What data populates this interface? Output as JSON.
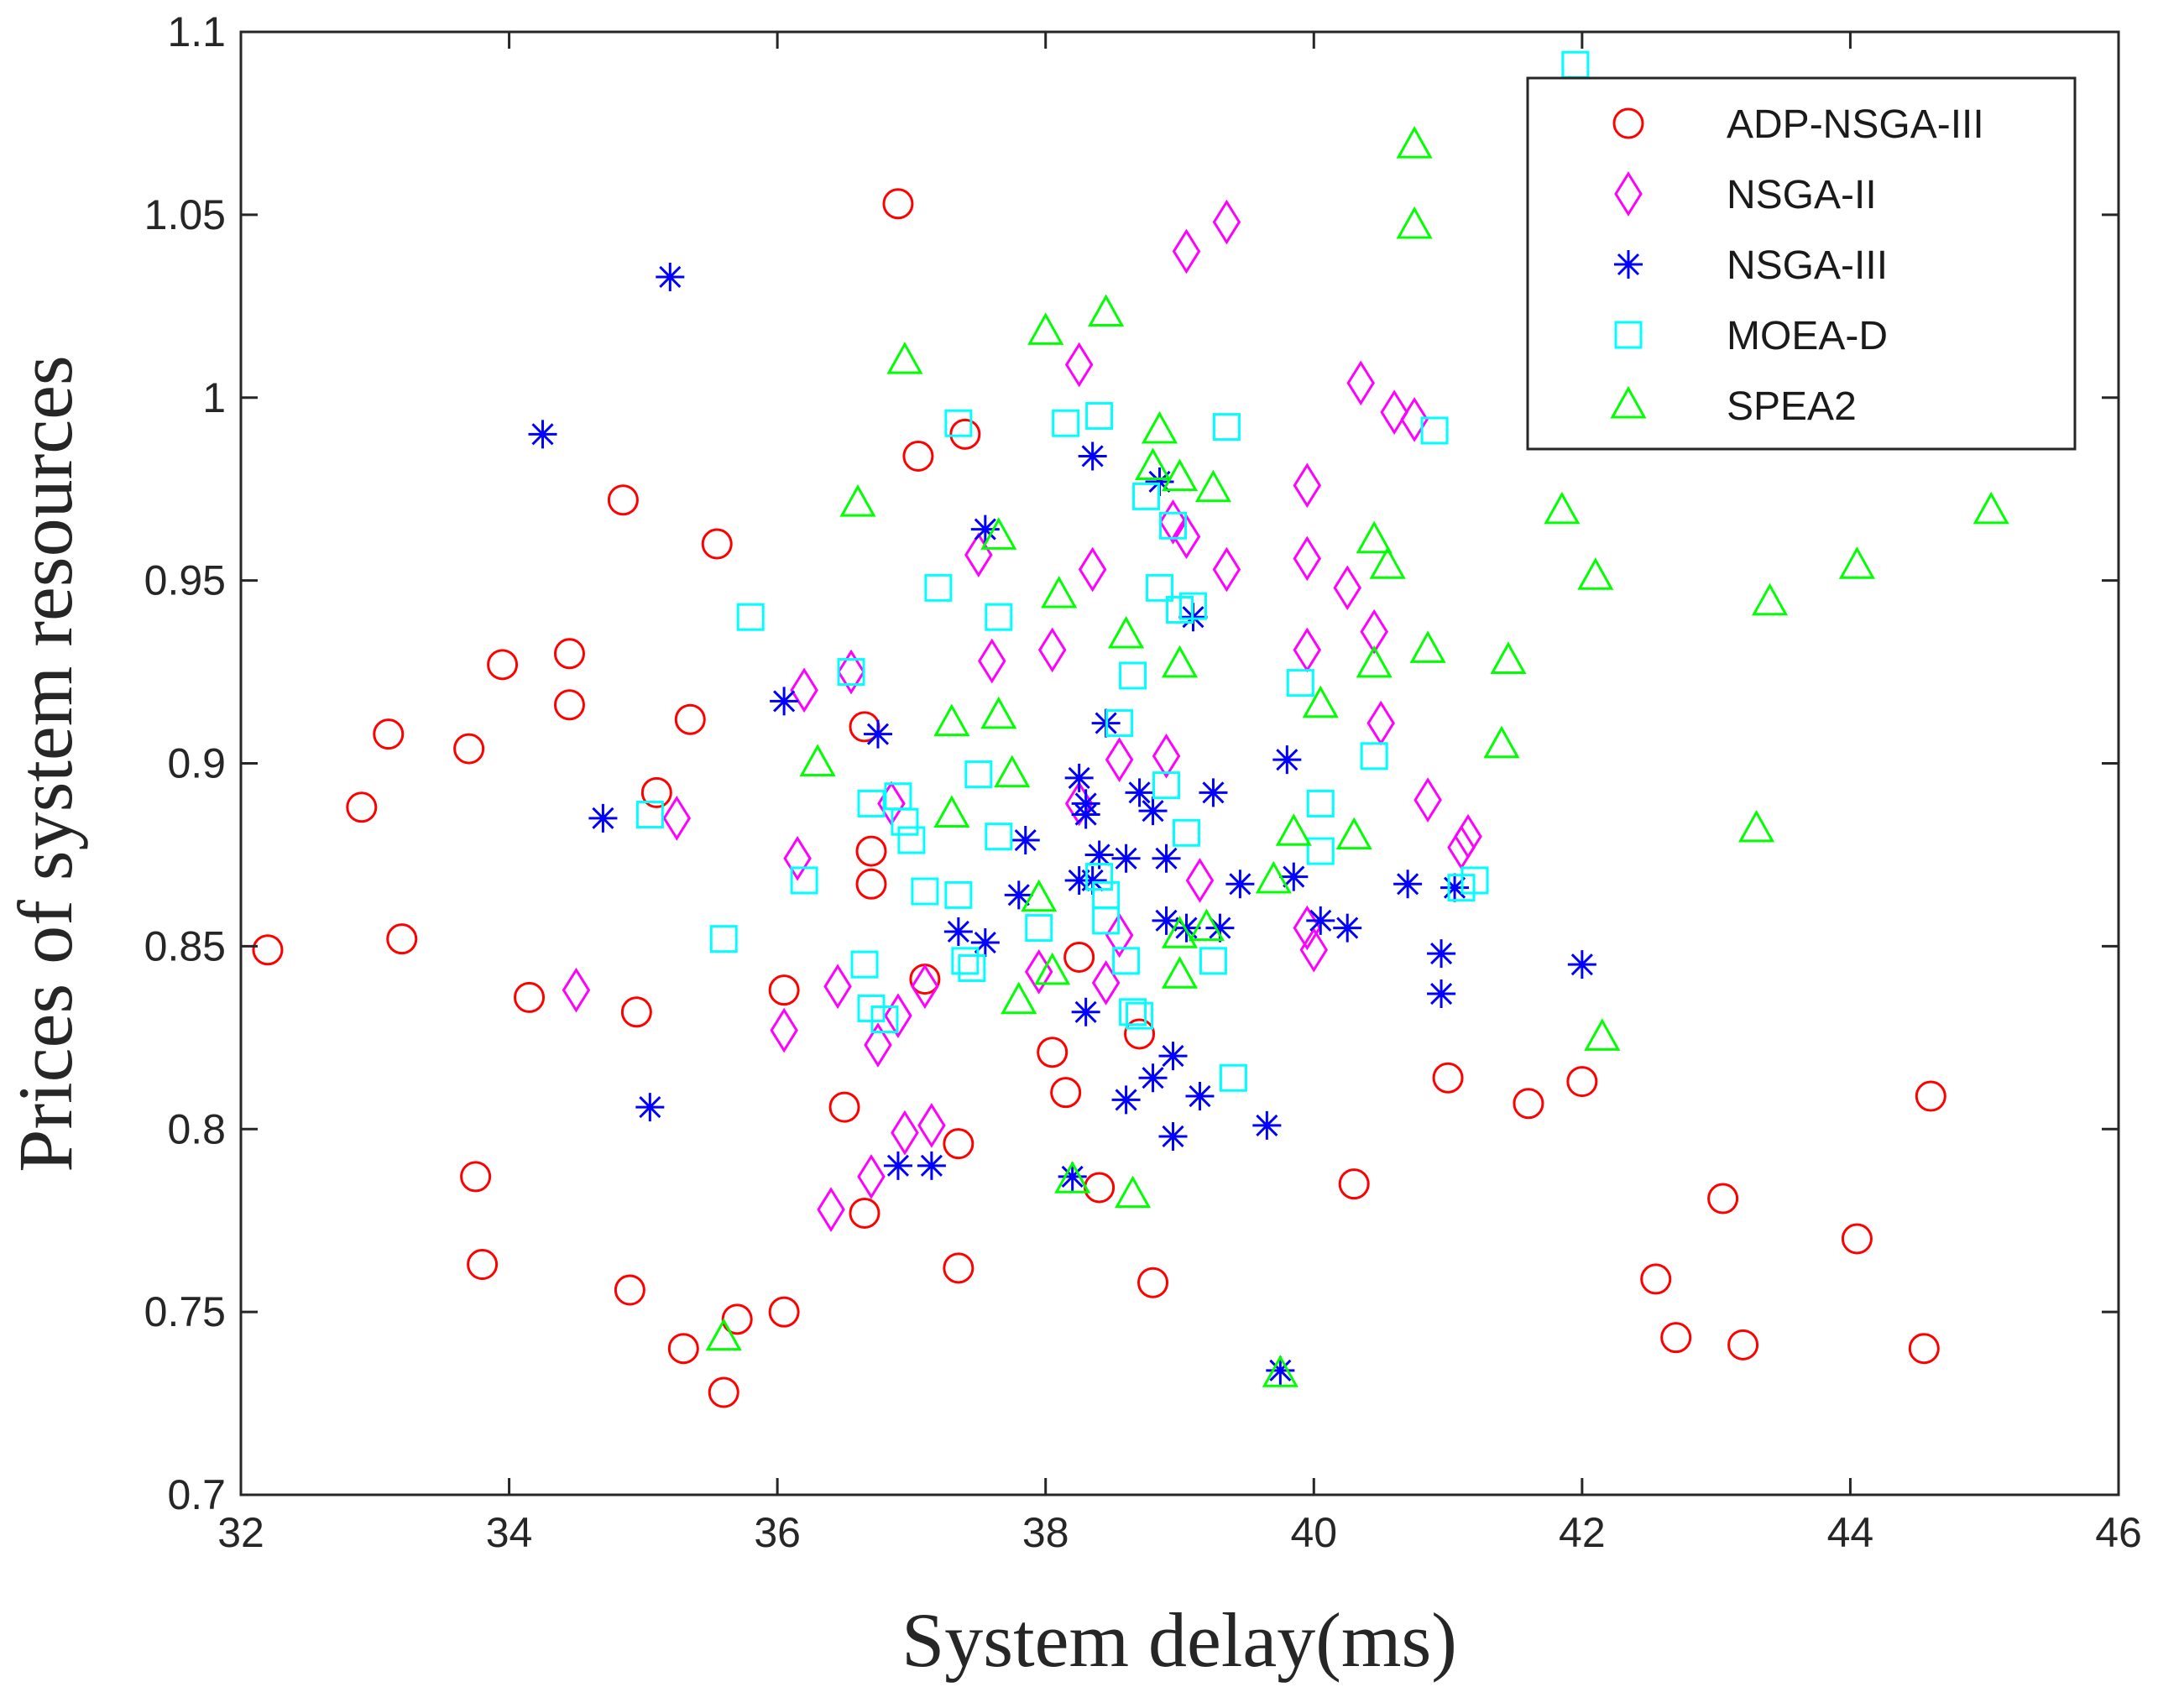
{
  "chart_data": {
    "type": "scatter",
    "title": "",
    "xlabel": "System delay(ms)",
    "ylabel": "Prices of system resources",
    "xlim": [
      32,
      46
    ],
    "ylim": [
      0.7,
      1.1
    ],
    "xticks": [
      32,
      34,
      36,
      38,
      40,
      42,
      44,
      46
    ],
    "yticks": [
      0.7,
      0.75,
      0.8,
      0.85,
      0.9,
      0.95,
      1.0,
      1.05,
      1.1
    ],
    "xtick_labels": [
      "32",
      "34",
      "36",
      "38",
      "40",
      "42",
      "44",
      "46"
    ],
    "ytick_labels": [
      "0.7",
      "0.75",
      "0.8",
      "0.85",
      "0.9",
      "0.95",
      "1",
      "1.05",
      "1.1"
    ],
    "legend_position": "top-right",
    "series": [
      {
        "name": "ADP-NSGA-III",
        "marker": "circle",
        "color": "#ff0000",
        "points": [
          [
            32.2,
            0.849
          ],
          [
            32.9,
            0.888
          ],
          [
            33.1,
            0.908
          ],
          [
            33.2,
            0.852
          ],
          [
            33.7,
            0.904
          ],
          [
            33.75,
            0.787
          ],
          [
            33.8,
            0.763
          ],
          [
            33.95,
            0.927
          ],
          [
            34.15,
            0.836
          ],
          [
            34.45,
            0.916
          ],
          [
            34.45,
            0.93
          ],
          [
            34.85,
            0.972
          ],
          [
            34.9,
            0.756
          ],
          [
            34.95,
            0.832
          ],
          [
            35.1,
            0.892
          ],
          [
            35.3,
            0.74
          ],
          [
            35.35,
            0.912
          ],
          [
            35.55,
            0.96
          ],
          [
            35.6,
            0.728
          ],
          [
            35.7,
            0.748
          ],
          [
            36.05,
            0.75
          ],
          [
            36.05,
            0.838
          ],
          [
            36.5,
            0.806
          ],
          [
            36.65,
            0.777
          ],
          [
            36.65,
            0.91
          ],
          [
            36.7,
            0.876
          ],
          [
            36.7,
            0.867
          ],
          [
            36.9,
            1.053
          ],
          [
            37.05,
            0.984
          ],
          [
            37.1,
            0.841
          ],
          [
            37.35,
            0.796
          ],
          [
            37.35,
            0.762
          ],
          [
            37.4,
            0.99
          ],
          [
            38.05,
            0.821
          ],
          [
            38.15,
            0.81
          ],
          [
            38.25,
            0.847
          ],
          [
            38.4,
            0.784
          ],
          [
            38.7,
            0.826
          ],
          [
            38.8,
            0.758
          ],
          [
            40.3,
            0.785
          ],
          [
            41.0,
            0.814
          ],
          [
            41.6,
            0.807
          ],
          [
            42.0,
            0.813
          ],
          [
            42.55,
            0.759
          ],
          [
            42.7,
            0.743
          ],
          [
            43.05,
            0.781
          ],
          [
            43.2,
            0.741
          ],
          [
            44.05,
            0.77
          ],
          [
            44.55,
            0.74
          ],
          [
            44.6,
            0.809
          ]
        ]
      },
      {
        "name": "NSGA-II",
        "marker": "diamond",
        "color": "#ff00ff",
        "points": [
          [
            34.5,
            0.838
          ],
          [
            35.25,
            0.885
          ],
          [
            36.05,
            0.827
          ],
          [
            36.15,
            0.874
          ],
          [
            36.2,
            0.92
          ],
          [
            36.4,
            0.778
          ],
          [
            36.45,
            0.839
          ],
          [
            36.55,
            0.925
          ],
          [
            36.7,
            0.787
          ],
          [
            36.75,
            0.823
          ],
          [
            36.85,
            0.889
          ],
          [
            36.9,
            0.831
          ],
          [
            36.95,
            0.799
          ],
          [
            37.1,
            0.839
          ],
          [
            37.15,
            0.801
          ],
          [
            37.5,
            0.957
          ],
          [
            37.6,
            0.928
          ],
          [
            37.95,
            0.843
          ],
          [
            38.05,
            0.931
          ],
          [
            38.25,
            1.009
          ],
          [
            38.25,
            0.889
          ],
          [
            38.35,
            0.953
          ],
          [
            38.45,
            0.84
          ],
          [
            38.55,
            0.901
          ],
          [
            38.55,
            0.853
          ],
          [
            38.9,
            0.902
          ],
          [
            38.95,
            0.966
          ],
          [
            39.05,
            0.962
          ],
          [
            39.05,
            1.04
          ],
          [
            39.15,
            0.868
          ],
          [
            39.35,
            1.048
          ],
          [
            39.35,
            0.953
          ],
          [
            39.95,
            0.976
          ],
          [
            39.95,
            0.956
          ],
          [
            39.95,
            0.931
          ],
          [
            39.95,
            0.855
          ],
          [
            40.0,
            0.849
          ],
          [
            40.25,
            0.948
          ],
          [
            40.35,
            1.004
          ],
          [
            40.45,
            0.936
          ],
          [
            40.5,
            0.911
          ],
          [
            40.6,
            0.996
          ],
          [
            40.75,
            0.994
          ],
          [
            40.85,
            0.89
          ],
          [
            41.1,
            0.877
          ],
          [
            41.15,
            0.88
          ]
        ]
      },
      {
        "name": "NSGA-III",
        "marker": "asterisk",
        "color": "#0000ff",
        "points": [
          [
            34.25,
            0.99
          ],
          [
            34.7,
            0.885
          ],
          [
            35.05,
            0.806
          ],
          [
            35.2,
            1.033
          ],
          [
            36.05,
            0.917
          ],
          [
            36.75,
            0.908
          ],
          [
            36.9,
            0.79
          ],
          [
            37.15,
            0.79
          ],
          [
            37.35,
            0.854
          ],
          [
            37.55,
            0.851
          ],
          [
            37.55,
            0.964
          ],
          [
            37.8,
            0.864
          ],
          [
            37.85,
            0.879
          ],
          [
            38.2,
            0.787
          ],
          [
            38.25,
            0.896
          ],
          [
            38.25,
            0.868
          ],
          [
            38.3,
            0.889
          ],
          [
            38.3,
            0.886
          ],
          [
            38.3,
            0.832
          ],
          [
            38.35,
            0.984
          ],
          [
            38.35,
            0.868
          ],
          [
            38.4,
            0.875
          ],
          [
            38.45,
            0.911
          ],
          [
            38.6,
            0.874
          ],
          [
            38.6,
            0.808
          ],
          [
            38.7,
            0.892
          ],
          [
            38.8,
            0.887
          ],
          [
            38.8,
            0.814
          ],
          [
            38.85,
            0.977
          ],
          [
            38.9,
            0.874
          ],
          [
            38.9,
            0.857
          ],
          [
            38.95,
            0.82
          ],
          [
            38.95,
            0.798
          ],
          [
            39.05,
            0.855
          ],
          [
            39.1,
            0.94
          ],
          [
            39.15,
            0.809
          ],
          [
            39.25,
            0.892
          ],
          [
            39.3,
            0.855
          ],
          [
            39.45,
            0.867
          ],
          [
            39.65,
            0.801
          ],
          [
            39.75,
            0.734
          ],
          [
            39.8,
            0.901
          ],
          [
            39.85,
            0.869
          ],
          [
            40.05,
            0.857
          ],
          [
            40.25,
            0.855
          ],
          [
            40.7,
            0.867
          ],
          [
            40.95,
            0.848
          ],
          [
            40.95,
            0.837
          ],
          [
            41.05,
            0.866
          ],
          [
            42.0,
            0.845
          ]
        ]
      },
      {
        "name": "MOEA-D",
        "marker": "square",
        "color": "#00ffff",
        "points": [
          [
            35.05,
            0.886
          ],
          [
            35.6,
            0.852
          ],
          [
            35.8,
            0.94
          ],
          [
            36.2,
            0.868
          ],
          [
            36.55,
            0.925
          ],
          [
            36.65,
            0.845
          ],
          [
            36.7,
            0.833
          ],
          [
            36.7,
            0.889
          ],
          [
            36.8,
            0.83
          ],
          [
            36.9,
            0.891
          ],
          [
            36.95,
            0.884
          ],
          [
            37.0,
            0.879
          ],
          [
            37.1,
            0.865
          ],
          [
            37.2,
            0.948
          ],
          [
            37.35,
            0.864
          ],
          [
            37.35,
            0.993
          ],
          [
            37.4,
            0.846
          ],
          [
            37.45,
            0.844
          ],
          [
            37.5,
            0.897
          ],
          [
            37.65,
            0.94
          ],
          [
            37.65,
            0.88
          ],
          [
            37.95,
            0.855
          ],
          [
            38.15,
            0.993
          ],
          [
            38.4,
            0.995
          ],
          [
            38.4,
            0.869
          ],
          [
            38.45,
            0.864
          ],
          [
            38.45,
            0.857
          ],
          [
            38.55,
            0.911
          ],
          [
            38.6,
            0.846
          ],
          [
            38.65,
            0.832
          ],
          [
            38.65,
            0.924
          ],
          [
            38.7,
            0.831
          ],
          [
            38.75,
            0.973
          ],
          [
            38.85,
            0.948
          ],
          [
            38.9,
            0.894
          ],
          [
            38.95,
            0.965
          ],
          [
            39.0,
            0.942
          ],
          [
            39.05,
            0.881
          ],
          [
            39.1,
            0.943
          ],
          [
            39.25,
            0.846
          ],
          [
            39.35,
            0.992
          ],
          [
            39.4,
            0.814
          ],
          [
            39.9,
            0.922
          ],
          [
            40.05,
            0.889
          ],
          [
            40.05,
            0.876
          ],
          [
            40.45,
            0.902
          ],
          [
            40.9,
            0.991
          ],
          [
            41.1,
            0.866
          ],
          [
            41.2,
            0.868
          ],
          [
            41.95,
            1.091
          ]
        ]
      },
      {
        "name": "SPEA2",
        "marker": "triangle",
        "color": "#00ff00",
        "points": [
          [
            35.6,
            0.743
          ],
          [
            36.3,
            0.9
          ],
          [
            36.6,
            0.971
          ],
          [
            36.95,
            1.01
          ],
          [
            37.3,
            0.911
          ],
          [
            37.3,
            0.886
          ],
          [
            37.65,
            0.962
          ],
          [
            37.65,
            0.913
          ],
          [
            37.75,
            0.897
          ],
          [
            37.8,
            0.835
          ],
          [
            37.95,
            0.863
          ],
          [
            38.05,
            0.843
          ],
          [
            38.0,
            1.018
          ],
          [
            38.1,
            0.946
          ],
          [
            38.2,
            0.786
          ],
          [
            38.45,
            1.023
          ],
          [
            38.6,
            0.935
          ],
          [
            38.65,
            0.782
          ],
          [
            38.8,
            0.981
          ],
          [
            38.85,
            0.991
          ],
          [
            39.0,
            0.978
          ],
          [
            39.0,
            0.927
          ],
          [
            39.0,
            0.853
          ],
          [
            39.0,
            0.842
          ],
          [
            39.2,
            0.855
          ],
          [
            39.25,
            0.975
          ],
          [
            39.7,
            0.868
          ],
          [
            39.75,
            0.733
          ],
          [
            39.85,
            0.881
          ],
          [
            40.05,
            0.916
          ],
          [
            40.3,
            0.88
          ],
          [
            40.45,
            0.961
          ],
          [
            40.45,
            0.927
          ],
          [
            40.55,
            0.954
          ],
          [
            40.75,
            1.069
          ],
          [
            40.75,
            1.047
          ],
          [
            40.85,
            0.931
          ],
          [
            41.4,
            0.905
          ],
          [
            41.45,
            0.928
          ],
          [
            41.85,
            0.969
          ],
          [
            42.1,
            0.951
          ],
          [
            42.15,
            0.825
          ],
          [
            43.3,
            0.882
          ],
          [
            43.4,
            0.944
          ],
          [
            44.05,
            0.954
          ],
          [
            45.05,
            0.969
          ]
        ]
      }
    ]
  }
}
